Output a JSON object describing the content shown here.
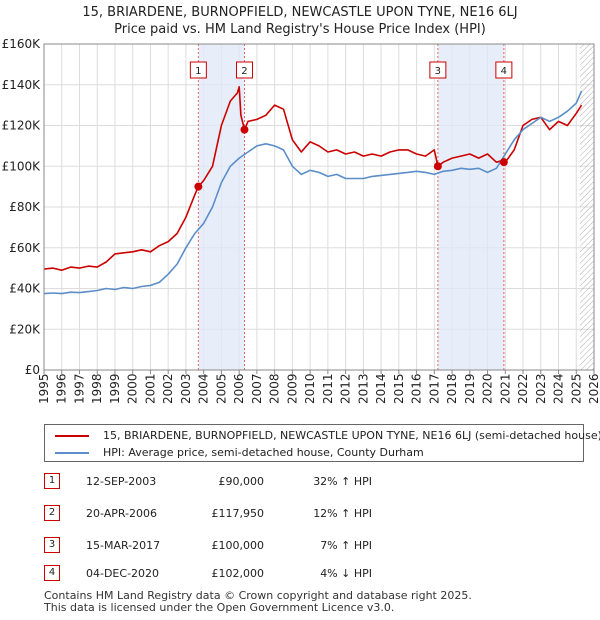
{
  "chart_data": {
    "type": "line",
    "title": "15, BRIARDENE, BURNOPFIELD, NEWCASTLE UPON TYNE, NE16 6LJ",
    "subtitle": "Price paid vs. HM Land Registry's House Price Index (HPI)",
    "xlabel": "",
    "ylabel": "",
    "xlim": [
      1995,
      2026
    ],
    "ylim": [
      0,
      160000
    ],
    "x_ticks": [
      "1995",
      "1996",
      "1997",
      "1998",
      "1999",
      "2000",
      "2001",
      "2002",
      "2003",
      "2004",
      "2005",
      "2006",
      "2007",
      "2008",
      "2009",
      "2010",
      "2011",
      "2012",
      "2013",
      "2014",
      "2015",
      "2016",
      "2017",
      "2018",
      "2019",
      "2020",
      "2021",
      "2022",
      "2023",
      "2024",
      "2025",
      "2026"
    ],
    "y_ticks": [
      "£0",
      "£20K",
      "£40K",
      "£60K",
      "£80K",
      "£100K",
      "£120K",
      "£140K",
      "£160K"
    ],
    "y_tick_values": [
      0,
      20000,
      40000,
      60000,
      80000,
      100000,
      120000,
      140000,
      160000
    ],
    "grid": true,
    "forecast_start": 2025.2,
    "series": [
      {
        "name": "15, BRIARDENE, BURNOPFIELD, NEWCASTLE UPON TYNE, NE16 6LJ (semi-detached house)",
        "color": "#cc0000",
        "x": [
          1995.0,
          1995.5,
          1996.0,
          1996.5,
          1997.0,
          1997.5,
          1998.0,
          1998.5,
          1999.0,
          1999.5,
          2000.0,
          2000.5,
          2001.0,
          2001.5,
          2002.0,
          2002.5,
          2003.0,
          2003.5,
          2003.7,
          2004.0,
          2004.5,
          2005.0,
          2005.5,
          2005.9,
          2006.0,
          2006.1,
          2006.3,
          2006.5,
          2007.0,
          2007.5,
          2008.0,
          2008.5,
          2009.0,
          2009.5,
          2010.0,
          2010.5,
          2011.0,
          2011.5,
          2012.0,
          2012.5,
          2013.0,
          2013.5,
          2014.0,
          2014.5,
          2015.0,
          2015.5,
          2016.0,
          2016.5,
          2017.0,
          2017.2,
          2017.5,
          2018.0,
          2018.5,
          2019.0,
          2019.5,
          2020.0,
          2020.5,
          2020.9,
          2021.0,
          2021.5,
          2022.0,
          2022.5,
          2023.0,
          2023.5,
          2024.0,
          2024.5,
          2025.0,
          2025.3
        ],
        "values": [
          49500,
          50000,
          49000,
          50500,
          50000,
          51000,
          50500,
          53000,
          57000,
          57500,
          58000,
          59000,
          58000,
          61000,
          63000,
          67000,
          75000,
          86000,
          90000,
          93000,
          100000,
          120000,
          132000,
          136000,
          139000,
          125000,
          117950,
          122000,
          123000,
          125000,
          130000,
          128000,
          113000,
          107000,
          112000,
          110000,
          107000,
          108000,
          106000,
          107000,
          105000,
          106000,
          105000,
          107000,
          108000,
          108000,
          106000,
          105000,
          108000,
          100000,
          102000,
          104000,
          105000,
          106000,
          104000,
          106000,
          102000,
          103000,
          102000,
          108000,
          120000,
          123000,
          124000,
          118000,
          122000,
          120000,
          126000,
          130000
        ]
      },
      {
        "name": "HPI: Average price, semi-detached house, County Durham",
        "color": "#5b8ec9",
        "x": [
          1995.0,
          1995.5,
          1996.0,
          1996.5,
          1997.0,
          1997.5,
          1998.0,
          1998.5,
          1999.0,
          1999.5,
          2000.0,
          2000.5,
          2001.0,
          2001.5,
          2002.0,
          2002.5,
          2003.0,
          2003.5,
          2004.0,
          2004.5,
          2005.0,
          2005.5,
          2006.0,
          2006.5,
          2007.0,
          2007.5,
          2008.0,
          2008.5,
          2009.0,
          2009.5,
          2010.0,
          2010.5,
          2011.0,
          2011.5,
          2012.0,
          2012.5,
          2013.0,
          2013.5,
          2014.0,
          2014.5,
          2015.0,
          2015.5,
          2016.0,
          2016.5,
          2017.0,
          2017.5,
          2018.0,
          2018.5,
          2019.0,
          2019.5,
          2020.0,
          2020.5,
          2021.0,
          2021.5,
          2022.0,
          2022.5,
          2023.0,
          2023.5,
          2024.0,
          2024.5,
          2025.0,
          2025.3
        ],
        "values": [
          37500,
          37800,
          37500,
          38200,
          38000,
          38500,
          39000,
          40000,
          39500,
          40500,
          40000,
          41000,
          41500,
          43000,
          47000,
          52000,
          60000,
          67000,
          72000,
          80000,
          92000,
          100000,
          104000,
          107000,
          110000,
          111000,
          110000,
          108000,
          100000,
          96000,
          98000,
          97000,
          95000,
          96000,
          94000,
          94000,
          94000,
          95000,
          95500,
          96000,
          96500,
          97000,
          97500,
          97000,
          96000,
          97500,
          98000,
          99000,
          98500,
          99000,
          97000,
          99000,
          106000,
          113000,
          118000,
          121000,
          124000,
          122000,
          124000,
          127000,
          131000,
          137000
        ]
      }
    ],
    "sales": [
      {
        "id": "1",
        "x": 2003.7,
        "y": 90000
      },
      {
        "id": "2",
        "x": 2006.3,
        "y": 117950
      },
      {
        "id": "3",
        "x": 2017.2,
        "y": 100000
      },
      {
        "id": "4",
        "x": 2020.92,
        "y": 102000
      }
    ]
  },
  "legend": {
    "property_label": "15, BRIARDENE, BURNOPFIELD, NEWCASTLE UPON TYNE, NE16 6LJ (semi-detached house)",
    "hpi_label": "HPI: Average price, semi-detached house, County Durham",
    "property_color": "#cc0000",
    "hpi_color": "#5b8ec9"
  },
  "sales_table": [
    {
      "id": "1",
      "date": "12-SEP-2003",
      "price": "£90,000",
      "hpi": "32% ↑ HPI"
    },
    {
      "id": "2",
      "date": "20-APR-2006",
      "price": "£117,950",
      "hpi": "12% ↑ HPI"
    },
    {
      "id": "3",
      "date": "15-MAR-2017",
      "price": "£100,000",
      "hpi": "7% ↑ HPI"
    },
    {
      "id": "4",
      "date": "04-DEC-2020",
      "price": "£102,000",
      "hpi": "4% ↓ HPI"
    }
  ],
  "footer": {
    "line1": "Contains HM Land Registry data © Crown copyright and database right 2025.",
    "line2": "This data is licensed under the Open Government Licence v3.0."
  }
}
